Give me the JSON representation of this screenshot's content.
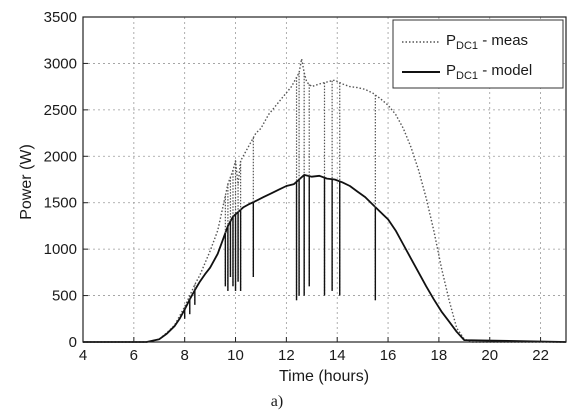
{
  "chart_data": {
    "type": "line",
    "title": "",
    "xlabel": "Time (hours)",
    "ylabel": "Power (W)",
    "xlim": [
      4,
      23
    ],
    "ylim": [
      0,
      3500
    ],
    "xticks": [
      "4",
      "6",
      "8",
      "10",
      "12",
      "14",
      "16",
      "18",
      "20",
      "22"
    ],
    "yticks": [
      "0",
      "500",
      "1000",
      "1500",
      "2000",
      "2500",
      "3000",
      "3500"
    ],
    "grid": true,
    "legend_position": "top-right",
    "caption": "a)",
    "series": [
      {
        "name_base": "P",
        "name_sub": "DC1",
        "name_suffix": " - meas",
        "style": "dotted",
        "color": "#555555",
        "x": [
          4,
          6.5,
          7.0,
          7.3,
          7.6,
          7.8,
          8.0,
          8.2,
          8.4,
          8.6,
          8.8,
          9.0,
          9.3,
          9.5,
          9.7,
          9.9,
          10.0,
          10.1,
          10.2,
          10.4,
          10.6,
          10.8,
          11.0,
          11.3,
          11.6,
          11.9,
          12.2,
          12.5,
          12.6,
          12.7,
          12.8,
          13.0,
          13.3,
          13.6,
          13.9,
          14.2,
          14.5,
          14.8,
          15.1,
          15.4,
          15.7,
          16.0,
          16.3,
          16.6,
          16.9,
          17.2,
          17.5,
          17.8,
          18.1,
          18.4,
          18.7,
          19.0,
          19.3,
          23
        ],
        "y": [
          0,
          0,
          30,
          100,
          180,
          280,
          380,
          500,
          620,
          720,
          850,
          980,
          1200,
          1450,
          1700,
          1850,
          1950,
          1700,
          1950,
          2050,
          2150,
          2250,
          2300,
          2450,
          2550,
          2650,
          2750,
          2900,
          3050,
          2900,
          2800,
          2750,
          2780,
          2800,
          2820,
          2780,
          2750,
          2740,
          2720,
          2680,
          2620,
          2550,
          2450,
          2300,
          2100,
          1850,
          1550,
          1200,
          800,
          450,
          150,
          30,
          0,
          0
        ]
      },
      {
        "name_base": "P",
        "name_sub": "DC1",
        "name_suffix": " - model",
        "style": "solid",
        "color": "#111111",
        "x": [
          4,
          6.5,
          7.0,
          7.3,
          7.6,
          7.8,
          8.0,
          8.2,
          8.4,
          8.6,
          8.8,
          9.0,
          9.3,
          9.5,
          9.7,
          9.9,
          10.1,
          10.3,
          10.5,
          10.8,
          11.1,
          11.4,
          11.7,
          12.0,
          12.3,
          12.5,
          12.7,
          13.0,
          13.3,
          13.6,
          13.9,
          14.2,
          14.5,
          14.8,
          15.1,
          15.4,
          15.7,
          16.0,
          16.3,
          16.6,
          16.9,
          17.2,
          17.5,
          17.8,
          18.1,
          18.4,
          18.7,
          19.0,
          23
        ],
        "y": [
          0,
          0,
          30,
          90,
          170,
          250,
          350,
          460,
          560,
          650,
          730,
          800,
          950,
          1100,
          1250,
          1350,
          1400,
          1450,
          1480,
          1520,
          1560,
          1600,
          1640,
          1680,
          1700,
          1750,
          1800,
          1780,
          1790,
          1760,
          1750,
          1720,
          1680,
          1620,
          1560,
          1480,
          1400,
          1320,
          1200,
          1050,
          900,
          750,
          600,
          460,
          330,
          220,
          110,
          20,
          0
        ]
      }
    ],
    "dips": [
      {
        "x": 8.0,
        "y": 250
      },
      {
        "x": 8.2,
        "y": 300
      },
      {
        "x": 8.4,
        "y": 400
      },
      {
        "x": 9.6,
        "y": 600
      },
      {
        "x": 9.7,
        "y": 550
      },
      {
        "x": 9.8,
        "y": 700
      },
      {
        "x": 9.9,
        "y": 600
      },
      {
        "x": 10.0,
        "y": 550
      },
      {
        "x": 10.1,
        "y": 650
      },
      {
        "x": 10.2,
        "y": 550
      },
      {
        "x": 10.7,
        "y": 700
      },
      {
        "x": 12.4,
        "y": 450
      },
      {
        "x": 12.5,
        "y": 500
      },
      {
        "x": 12.7,
        "y": 500
      },
      {
        "x": 12.9,
        "y": 600
      },
      {
        "x": 13.5,
        "y": 500
      },
      {
        "x": 13.8,
        "y": 550
      },
      {
        "x": 14.1,
        "y": 500
      },
      {
        "x": 15.5,
        "y": 450
      }
    ]
  }
}
